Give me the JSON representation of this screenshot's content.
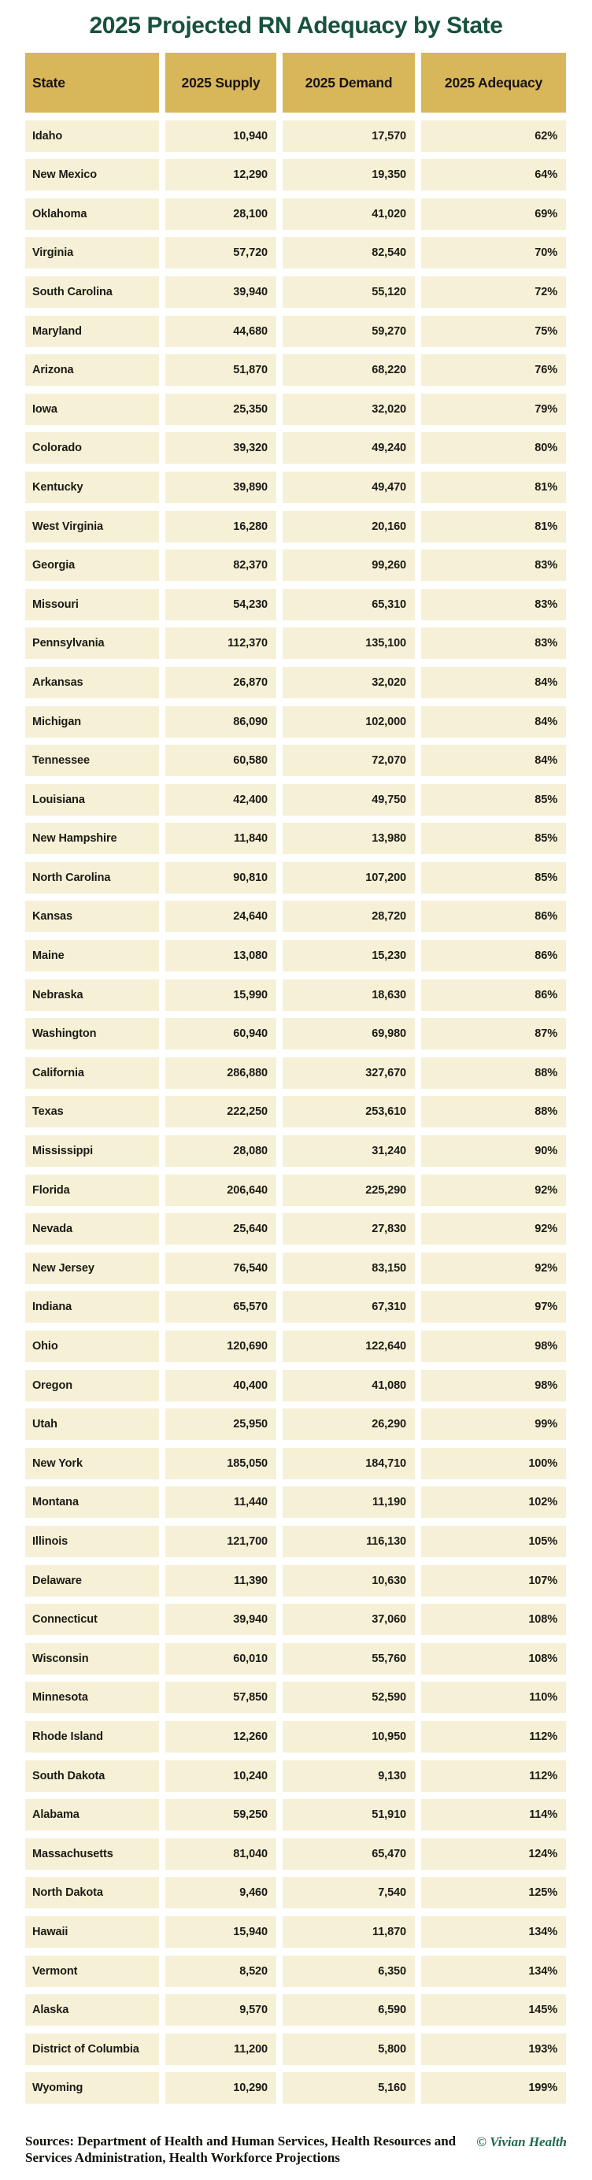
{
  "chart_data": {
    "type": "table",
    "title": "2025 Projected RN Adequacy by State",
    "columns": [
      "State",
      "2025 Supply",
      "2025 Demand",
      "2025 Adequacy"
    ],
    "rows": [
      [
        "Idaho",
        "10,940",
        "17,570",
        "62%"
      ],
      [
        "New Mexico",
        "12,290",
        "19,350",
        "64%"
      ],
      [
        "Oklahoma",
        "28,100",
        "41,020",
        "69%"
      ],
      [
        "Virginia",
        "57,720",
        "82,540",
        "70%"
      ],
      [
        "South Carolina",
        "39,940",
        "55,120",
        "72%"
      ],
      [
        "Maryland",
        "44,680",
        "59,270",
        "75%"
      ],
      [
        "Arizona",
        "51,870",
        "68,220",
        "76%"
      ],
      [
        "Iowa",
        "25,350",
        "32,020",
        "79%"
      ],
      [
        "Colorado",
        "39,320",
        "49,240",
        "80%"
      ],
      [
        "Kentucky",
        "39,890",
        "49,470",
        "81%"
      ],
      [
        "West Virginia",
        "16,280",
        "20,160",
        "81%"
      ],
      [
        "Georgia",
        "82,370",
        "99,260",
        "83%"
      ],
      [
        "Missouri",
        "54,230",
        "65,310",
        "83%"
      ],
      [
        "Pennsylvania",
        "112,370",
        "135,100",
        "83%"
      ],
      [
        "Arkansas",
        "26,870",
        "32,020",
        "84%"
      ],
      [
        "Michigan",
        "86,090",
        "102,000",
        "84%"
      ],
      [
        "Tennessee",
        "60,580",
        "72,070",
        "84%"
      ],
      [
        "Louisiana",
        "42,400",
        "49,750",
        "85%"
      ],
      [
        "New Hampshire",
        "11,840",
        "13,980",
        "85%"
      ],
      [
        "North Carolina",
        "90,810",
        "107,200",
        "85%"
      ],
      [
        "Kansas",
        "24,640",
        "28,720",
        "86%"
      ],
      [
        "Maine",
        "13,080",
        "15,230",
        "86%"
      ],
      [
        "Nebraska",
        "15,990",
        "18,630",
        "86%"
      ],
      [
        "Washington",
        "60,940",
        "69,980",
        "87%"
      ],
      [
        "California",
        "286,880",
        "327,670",
        "88%"
      ],
      [
        "Texas",
        "222,250",
        "253,610",
        "88%"
      ],
      [
        "Mississippi",
        "28,080",
        "31,240",
        "90%"
      ],
      [
        "Florida",
        "206,640",
        "225,290",
        "92%"
      ],
      [
        "Nevada",
        "25,640",
        "27,830",
        "92%"
      ],
      [
        "New Jersey",
        "76,540",
        "83,150",
        "92%"
      ],
      [
        "Indiana",
        "65,570",
        "67,310",
        "97%"
      ],
      [
        "Ohio",
        "120,690",
        "122,640",
        "98%"
      ],
      [
        "Oregon",
        "40,400",
        "41,080",
        "98%"
      ],
      [
        "Utah",
        "25,950",
        "26,290",
        "99%"
      ],
      [
        "New York",
        "185,050",
        "184,710",
        "100%"
      ],
      [
        "Montana",
        "11,440",
        "11,190",
        "102%"
      ],
      [
        "Illinois",
        "121,700",
        "116,130",
        "105%"
      ],
      [
        "Delaware",
        "11,390",
        "10,630",
        "107%"
      ],
      [
        "Connecticut",
        "39,940",
        "37,060",
        "108%"
      ],
      [
        "Wisconsin",
        "60,010",
        "55,760",
        "108%"
      ],
      [
        "Minnesota",
        "57,850",
        "52,590",
        "110%"
      ],
      [
        "Rhode Island",
        "12,260",
        "10,950",
        "112%"
      ],
      [
        "South Dakota",
        "10,240",
        "9,130",
        "112%"
      ],
      [
        "Alabama",
        "59,250",
        "51,910",
        "114%"
      ],
      [
        "Massachusetts",
        "81,040",
        "65,470",
        "124%"
      ],
      [
        "North Dakota",
        "9,460",
        "7,540",
        "125%"
      ],
      [
        "Hawaii",
        "15,940",
        "11,870",
        "134%"
      ],
      [
        "Vermont",
        "8,520",
        "6,350",
        "134%"
      ],
      [
        "Alaska",
        "9,570",
        "6,590",
        "145%"
      ],
      [
        "District of Columbia",
        "11,200",
        "5,800",
        "193%"
      ],
      [
        "Wyoming",
        "10,290",
        "5,160",
        "199%"
      ]
    ]
  },
  "footer": {
    "sources": "Sources: Department of Health and Human Services, Health Resources and Services Administration, Health Workforce Projections",
    "credit": "© Vivian Health"
  },
  "colors": {
    "header_bg": "#D8B65A",
    "row_bg": "#F6F1D6",
    "title_green": "#17523F",
    "credit_green": "#1F6A4B"
  }
}
